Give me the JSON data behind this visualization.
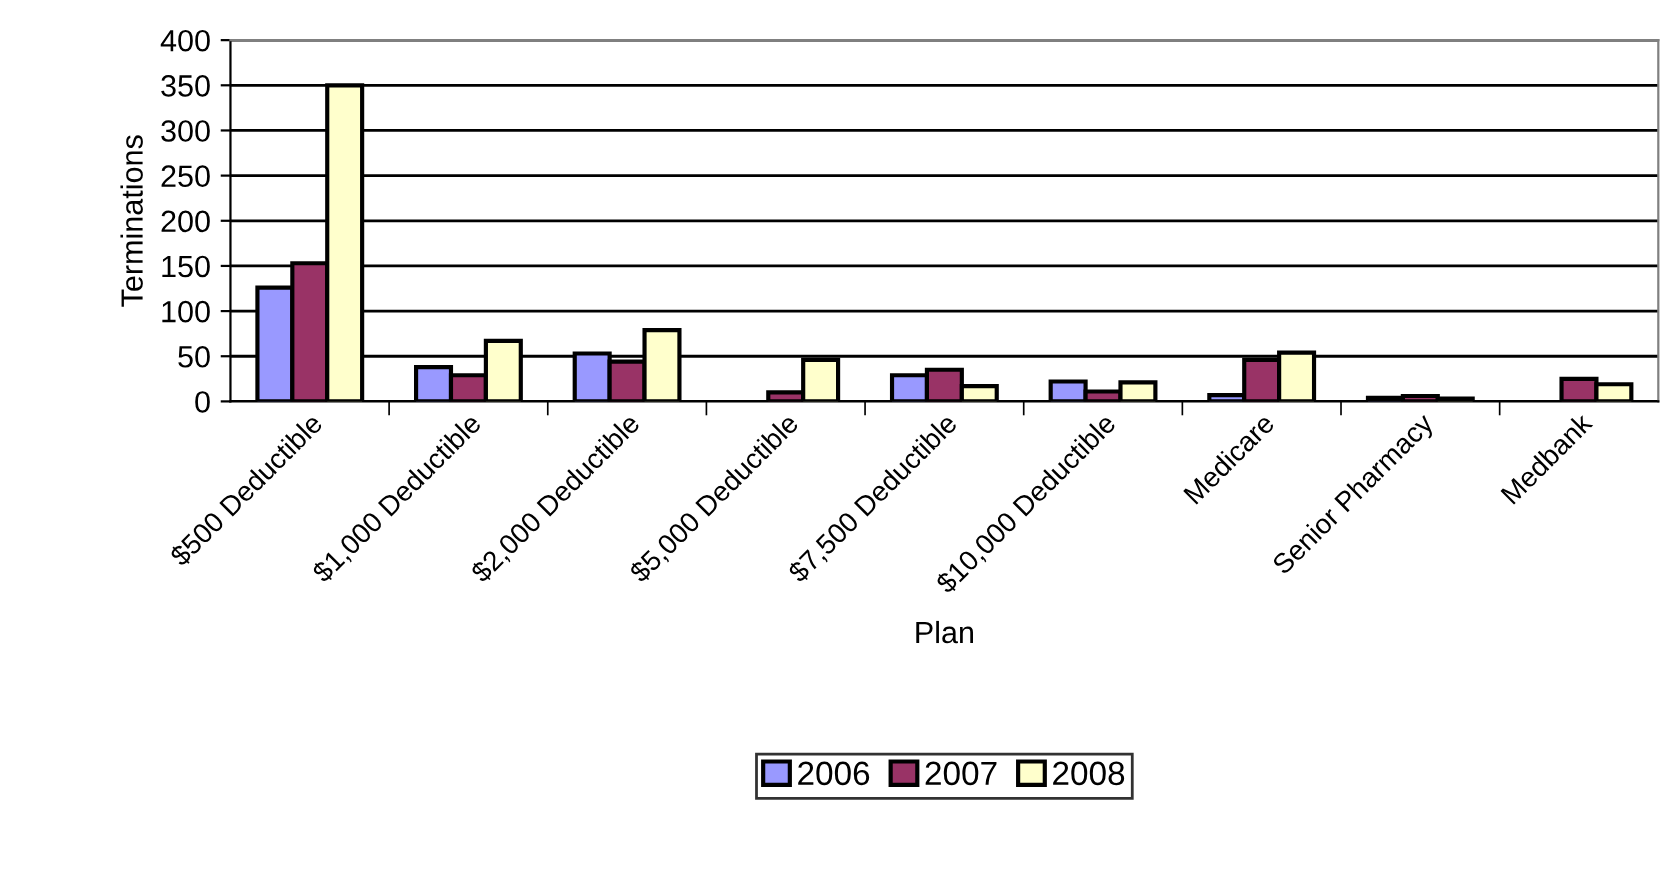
{
  "chart_data": {
    "type": "bar",
    "xlabel": "Plan",
    "ylabel": "Terminations",
    "categories": [
      "$500 Deductible",
      "$1,000 Deductible",
      "$2,000 Deductible",
      "$5,000 Deductible",
      "$7,500 Deductible",
      "$10,000 Deductible",
      "Medicare",
      "Senior Pharmacy",
      "Medbank"
    ],
    "series": [
      {
        "name": "2006",
        "color": "#9999ff",
        "values": [
          126,
          38,
          53,
          null,
          29,
          22,
          7,
          4,
          null
        ]
      },
      {
        "name": "2007",
        "color": "#993366",
        "values": [
          153,
          29,
          44,
          10,
          35,
          11,
          46,
          6,
          25
        ]
      },
      {
        "name": "2008",
        "color": "#ffffcc",
        "values": [
          350,
          67,
          79,
          46,
          17,
          21,
          54,
          3,
          19
        ]
      }
    ],
    "ylim": [
      0,
      400
    ],
    "yticks": [
      0,
      50,
      100,
      150,
      200,
      250,
      300,
      350,
      400
    ],
    "grid": "y",
    "legend": "bottom"
  }
}
